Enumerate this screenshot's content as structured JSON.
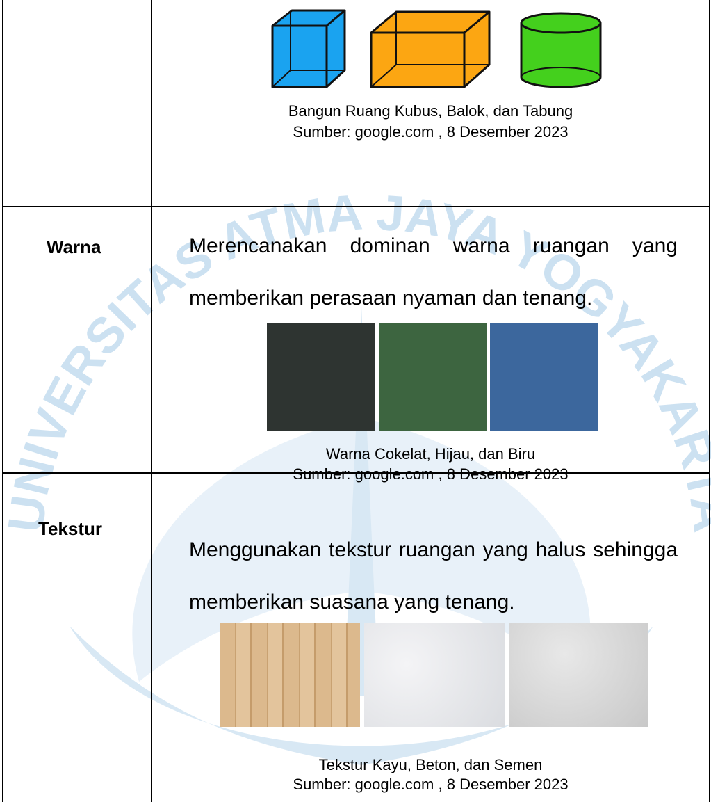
{
  "watermark": "UNIVERSITAS ATMA JAYA YOGYAKARTA",
  "table": {
    "rows": [
      {
        "caption": [
          "Bangun Ruang Kubus, Balok, dan Tabung",
          "Sumber: google.com , 8 Desember 2023"
        ]
      },
      {
        "label": "Warna",
        "text": "Merencanakan dominan warna ruangan yang memberikan perasaan nyaman dan tenang.",
        "caption": [
          "Warna Cokelat, Hijau, dan Biru",
          "Sumber: google.com , 8 Desember 2023"
        ]
      },
      {
        "label": "Tekstur",
        "text": "Menggunakan tekstur ruangan yang halus sehingga memberikan suasana yang tenang.",
        "caption": [
          "Tekstur Kayu, Beton, dan Semen",
          "Sumber: google.com , 8 Desember 2023"
        ]
      }
    ]
  }
}
